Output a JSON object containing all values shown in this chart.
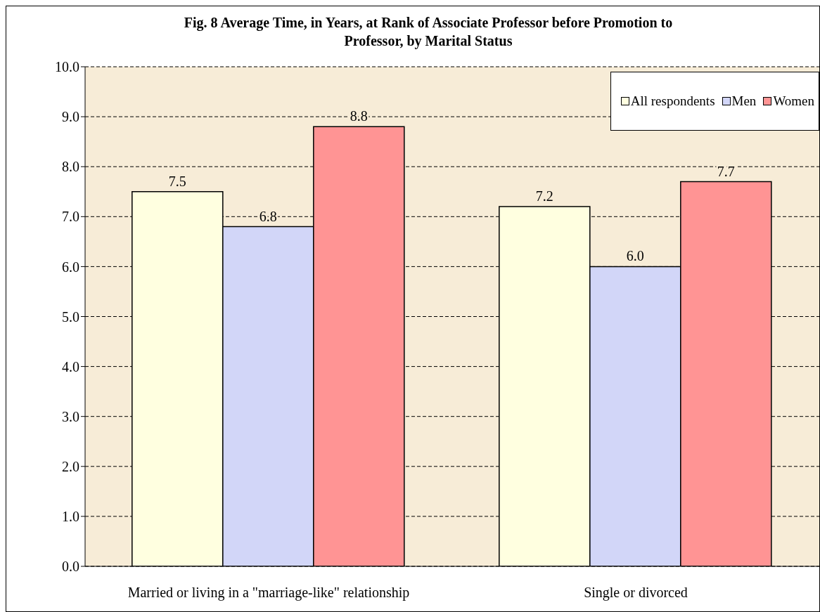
{
  "chart_data": {
    "type": "bar",
    "title": "Fig. 8 Average Time, in Years, at Rank of Associate Professor before Promotion to Professor, by Marital Status",
    "categories": [
      "Married or living in a \"marriage-like\" relationship",
      "Single or divorced"
    ],
    "series": [
      {
        "name": "All respondents",
        "color": "#ffffe0",
        "values": [
          7.5,
          7.2
        ],
        "value_labels": [
          "7.5",
          "7.2"
        ]
      },
      {
        "name": "Men",
        "color": "#d2d6f8",
        "values": [
          6.8,
          6.0
        ],
        "value_labels": [
          "6.8",
          "6.0"
        ]
      },
      {
        "name": "Women",
        "color": "#ff9494",
        "values": [
          8.8,
          7.7
        ],
        "value_labels": [
          "8.8",
          "7.7"
        ]
      }
    ],
    "ylim": [
      0,
      10
    ],
    "yticks": [
      {
        "value": 0,
        "label": "0.0"
      },
      {
        "value": 1,
        "label": "1.0"
      },
      {
        "value": 2,
        "label": "2.0"
      },
      {
        "value": 3,
        "label": "3.0"
      },
      {
        "value": 4,
        "label": "4.0"
      },
      {
        "value": 5,
        "label": "5.0"
      },
      {
        "value": 6,
        "label": "6.0"
      },
      {
        "value": 7,
        "label": "7.0"
      },
      {
        "value": 8,
        "label": "8.0"
      },
      {
        "value": 9,
        "label": "9.0"
      },
      {
        "value": 10,
        "label": "10.0"
      }
    ],
    "grid": "y",
    "legend": "top right"
  }
}
